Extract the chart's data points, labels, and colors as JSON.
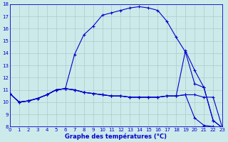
{
  "xlabel": "Graphe des températures (°C)",
  "bg_color": "#cceaea",
  "grid_color": "#aacccc",
  "line_color": "#0000cc",
  "ylim": [
    8,
    18
  ],
  "xlim": [
    0,
    23
  ],
  "yticks": [
    8,
    9,
    10,
    11,
    12,
    13,
    14,
    15,
    16,
    17,
    18
  ],
  "xticks": [
    0,
    1,
    2,
    3,
    4,
    5,
    6,
    7,
    8,
    9,
    10,
    11,
    12,
    13,
    14,
    15,
    16,
    17,
    18,
    19,
    20,
    21,
    22,
    23
  ],
  "line1_x": [
    0,
    1,
    2,
    3,
    4,
    5,
    6,
    7,
    8,
    9,
    10,
    11,
    12,
    13,
    14,
    15,
    16,
    17,
    18,
    19,
    20,
    21,
    22,
    23
  ],
  "line1_y": [
    10.7,
    10.0,
    10.1,
    10.3,
    10.6,
    11.0,
    11.1,
    13.9,
    15.5,
    16.2,
    17.1,
    17.3,
    17.5,
    17.7,
    17.8,
    17.7,
    17.5,
    16.6,
    15.3,
    14.1,
    11.5,
    11.2,
    8.5,
    7.9
  ],
  "line2_x": [
    0,
    1,
    2,
    3,
    4,
    5,
    6,
    7,
    8,
    9,
    10,
    11,
    12,
    13,
    14,
    15,
    16,
    17,
    18,
    19,
    20,
    21,
    22,
    23
  ],
  "line2_y": [
    10.7,
    10.0,
    10.1,
    10.3,
    10.6,
    11.0,
    11.1,
    11.0,
    10.8,
    10.7,
    10.6,
    10.5,
    10.5,
    10.4,
    10.4,
    10.4,
    10.4,
    10.5,
    10.5,
    10.6,
    10.6,
    10.4,
    10.4,
    7.9
  ],
  "line3_x": [
    0,
    1,
    2,
    3,
    4,
    5,
    6,
    7,
    8,
    9,
    10,
    11,
    12,
    13,
    14,
    15,
    16,
    17,
    18,
    19,
    20,
    21,
    22,
    23
  ],
  "line3_y": [
    10.7,
    10.0,
    10.1,
    10.3,
    10.6,
    11.0,
    11.1,
    11.0,
    10.8,
    10.7,
    10.6,
    10.5,
    10.5,
    10.4,
    10.4,
    10.4,
    10.4,
    10.5,
    10.5,
    14.2,
    12.6,
    11.2,
    8.5,
    7.9
  ],
  "line4_x": [
    0,
    1,
    2,
    3,
    4,
    5,
    6,
    7,
    8,
    9,
    10,
    11,
    12,
    13,
    14,
    15,
    16,
    17,
    18,
    19,
    20,
    21,
    22,
    23
  ],
  "line4_y": [
    10.7,
    10.0,
    10.1,
    10.3,
    10.6,
    11.0,
    11.1,
    11.0,
    10.8,
    10.7,
    10.6,
    10.5,
    10.5,
    10.4,
    10.4,
    10.4,
    10.4,
    10.5,
    10.5,
    10.6,
    8.7,
    8.1,
    8.0,
    7.9
  ]
}
